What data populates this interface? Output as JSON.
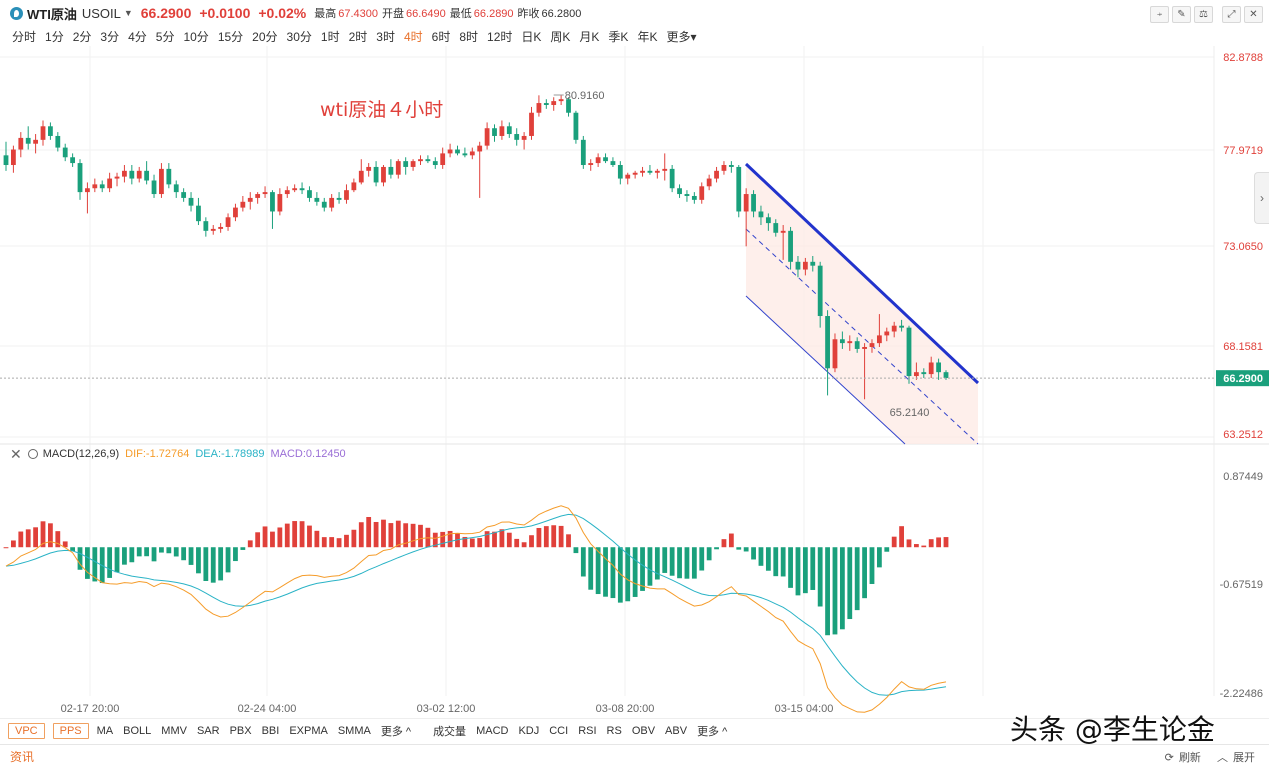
{
  "header": {
    "symbol": "WTI原油",
    "code": "USOIL",
    "price": "66.2900",
    "change": "+0.0100",
    "change_pct": "+0.02%",
    "stats": [
      {
        "label": "最高",
        "value": "67.4300",
        "color": "red"
      },
      {
        "label": "开盘",
        "value": "66.6490",
        "color": "red"
      },
      {
        "label": "最低",
        "value": "66.2890",
        "color": "red"
      },
      {
        "label": "昨收",
        "value": "66.2800",
        "color": "plain"
      }
    ],
    "toolbar_icons": [
      "indicator-icon",
      "draw-icon",
      "compare-icon",
      "fullscreen-icon",
      "close-icon"
    ]
  },
  "intervals": {
    "items": [
      "分时",
      "1分",
      "2分",
      "3分",
      "4分",
      "5分",
      "10分",
      "15分",
      "20分",
      "30分",
      "1时",
      "2时",
      "3时",
      "4时",
      "6时",
      "8时",
      "12时",
      "日K",
      "周K",
      "月K",
      "季K",
      "年K",
      "更多▾"
    ],
    "active": "4时"
  },
  "annotation": "wti原油４小时",
  "price_axis": [
    "82.8788",
    "77.9719",
    "73.0650",
    "68.1581",
    "63.2512"
  ],
  "current_price_tag": "66.2900",
  "markers": {
    "high": "80.9160",
    "low": "65.2140"
  },
  "macd": {
    "name": "MACD(12,26,9)",
    "dif": "DIF:-1.72764",
    "dea": "DEA:-1.78989",
    "macd": "MACD:0.12450",
    "axis": [
      "0.87449",
      "-0.67519",
      "-2.22486"
    ]
  },
  "time_axis": [
    "02-17 20:00",
    "02-24 04:00",
    "03-02 12:00",
    "03-08 20:00",
    "03-15 04:00"
  ],
  "indicators": {
    "tags": [
      "VPC",
      "PPS"
    ],
    "main": [
      "MA",
      "BOLL",
      "MMV",
      "SAR",
      "PBX",
      "BBI",
      "EXPMA",
      "SMMA",
      "更多 ^"
    ],
    "sub": [
      "成交量",
      "MACD",
      "KDJ",
      "CCI",
      "RSI",
      "RS",
      "OBV",
      "ABV",
      "更多 ^"
    ]
  },
  "footer": {
    "news": "资讯",
    "refresh": "刷新",
    "expand": "展开"
  },
  "watermark": "头条 @李生论金",
  "colors": {
    "up": "#e0403a",
    "down": "#1aa07c",
    "channel": "#2233cc",
    "dif": "#f59c2a",
    "dea": "#2ab3c6"
  }
}
